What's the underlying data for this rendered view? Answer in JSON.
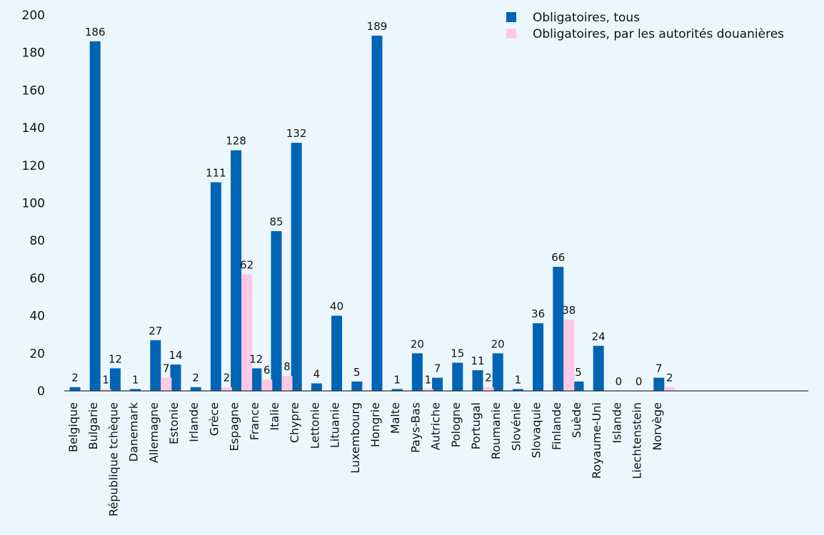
{
  "chart_data": {
    "type": "bar",
    "title": "",
    "xlabel": "",
    "ylabel": "",
    "ylim": [
      0,
      200
    ],
    "yticks": [
      0,
      20,
      40,
      60,
      80,
      100,
      120,
      140,
      160,
      180,
      200
    ],
    "grid": false,
    "legend_position": "top-right",
    "categories": [
      "Belgique",
      "Bulgarie",
      "République tchèque",
      "Danemark",
      "Allemagne",
      "Estonie",
      "Irlande",
      "Grèce",
      "Espagne",
      "France",
      "Italie",
      "Chypre",
      "Lettonie",
      "Lituanie",
      "Luxembourg",
      "Hongrie",
      "Malte",
      "Pays-Bas",
      "Autriche",
      "Pologne",
      "Portugal",
      "Roumanie",
      "Slovénie",
      "Slovaquie",
      "Finlande",
      "Suède",
      "Royaume-Uni",
      "Islande",
      "Liechtenstein",
      "Norvège"
    ],
    "series": [
      {
        "name": "Obligatoires, tous",
        "color": "#0064b4",
        "values": [
          2,
          186,
          12,
          1,
          27,
          14,
          2,
          111,
          128,
          12,
          85,
          132,
          4,
          40,
          5,
          189,
          1,
          20,
          7,
          15,
          11,
          20,
          1,
          36,
          66,
          5,
          24,
          0,
          0,
          7
        ]
      },
      {
        "name": "Obligatoires, par les autorités douanières",
        "color": "#ffc8e6",
        "values": [
          null,
          1,
          null,
          null,
          7,
          null,
          null,
          2,
          62,
          6,
          8,
          null,
          null,
          null,
          null,
          null,
          null,
          1,
          null,
          null,
          2,
          null,
          null,
          null,
          38,
          null,
          null,
          null,
          null,
          2
        ]
      }
    ]
  }
}
